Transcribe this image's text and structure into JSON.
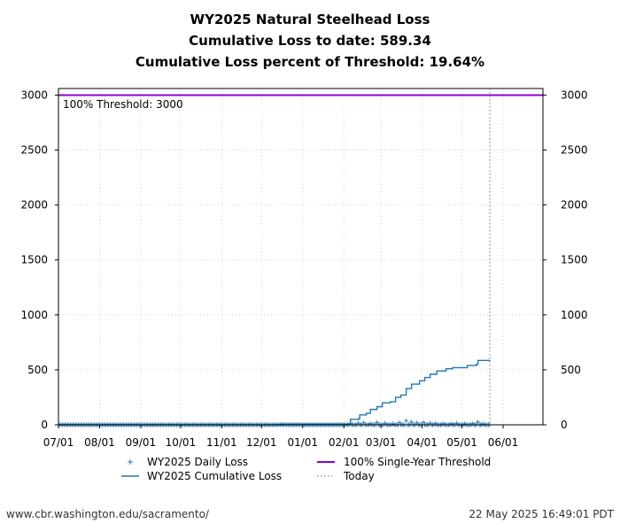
{
  "chart_data": {
    "type": "line",
    "title": "WY2025 Natural Steelhead Loss",
    "subtitle_1": "Cumulative Loss to date: 589.34",
    "subtitle_2": "Cumulative Loss percent of Threshold: 19.64%",
    "threshold_annotation": "100% Threshold: 3000",
    "xlim_days": [
      0,
      365
    ],
    "ylim": [
      0,
      3060
    ],
    "x_ticks": [
      {
        "label": "07/01",
        "day": 0
      },
      {
        "label": "08/01",
        "day": 31
      },
      {
        "label": "09/01",
        "day": 62
      },
      {
        "label": "10/01",
        "day": 92
      },
      {
        "label": "11/01",
        "day": 123
      },
      {
        "label": "12/01",
        "day": 153
      },
      {
        "label": "01/01",
        "day": 184
      },
      {
        "label": "02/01",
        "day": 215
      },
      {
        "label": "03/01",
        "day": 243
      },
      {
        "label": "04/01",
        "day": 274
      },
      {
        "label": "05/01",
        "day": 304
      },
      {
        "label": "06/01",
        "day": 335
      }
    ],
    "y_ticks": [
      {
        "label": "0",
        "value": 0
      },
      {
        "label": "500",
        "value": 500
      },
      {
        "label": "1000",
        "value": 1000
      },
      {
        "label": "1500",
        "value": 1500
      },
      {
        "label": "2000",
        "value": 2000
      },
      {
        "label": "2500",
        "value": 2500
      },
      {
        "label": "3000",
        "value": 3000
      }
    ],
    "threshold_value": 3000,
    "today_day": 325,
    "daily_loss_end_day": 325,
    "daily_loss_nonzero": [
      {
        "day": 168,
        "value": 5
      },
      {
        "day": 220,
        "value": 12
      },
      {
        "day": 226,
        "value": 15
      },
      {
        "day": 230,
        "value": 18
      },
      {
        "day": 235,
        "value": 10
      },
      {
        "day": 240,
        "value": 22
      },
      {
        "day": 246,
        "value": 14
      },
      {
        "day": 252,
        "value": 8
      },
      {
        "day": 257,
        "value": 20
      },
      {
        "day": 262,
        "value": 38
      },
      {
        "day": 266,
        "value": 25
      },
      {
        "day": 270,
        "value": 18
      },
      {
        "day": 275,
        "value": 22
      },
      {
        "day": 280,
        "value": 16
      },
      {
        "day": 284,
        "value": 12
      },
      {
        "day": 290,
        "value": 10
      },
      {
        "day": 296,
        "value": 9
      },
      {
        "day": 300,
        "value": 14
      },
      {
        "day": 306,
        "value": 8
      },
      {
        "day": 312,
        "value": 11
      },
      {
        "day": 316,
        "value": 25
      },
      {
        "day": 320,
        "value": 7
      }
    ],
    "cumulative_loss": [
      {
        "day": 0,
        "value": 0
      },
      {
        "day": 168,
        "value": 0
      },
      {
        "day": 169,
        "value": 5
      },
      {
        "day": 219,
        "value": 5
      },
      {
        "day": 220,
        "value": 50
      },
      {
        "day": 226,
        "value": 55
      },
      {
        "day": 227,
        "value": 90
      },
      {
        "day": 232,
        "value": 105
      },
      {
        "day": 235,
        "value": 140
      },
      {
        "day": 240,
        "value": 165
      },
      {
        "day": 244,
        "value": 200
      },
      {
        "day": 250,
        "value": 210
      },
      {
        "day": 254,
        "value": 250
      },
      {
        "day": 258,
        "value": 270
      },
      {
        "day": 262,
        "value": 330
      },
      {
        "day": 266,
        "value": 370
      },
      {
        "day": 272,
        "value": 400
      },
      {
        "day": 276,
        "value": 430
      },
      {
        "day": 280,
        "value": 460
      },
      {
        "day": 285,
        "value": 490
      },
      {
        "day": 292,
        "value": 510
      },
      {
        "day": 297,
        "value": 520
      },
      {
        "day": 305,
        "value": 520
      },
      {
        "day": 308,
        "value": 540
      },
      {
        "day": 315,
        "value": 550
      },
      {
        "day": 316,
        "value": 585
      },
      {
        "day": 325,
        "value": 589.34
      }
    ],
    "legend": [
      {
        "key": "daily",
        "label": "WY2025 Daily Loss",
        "marker": "+",
        "color": "#1f77b4"
      },
      {
        "key": "threshold",
        "label": "100% Single-Year Threshold",
        "marker": "line",
        "color": "#8a00d4"
      },
      {
        "key": "cumulative",
        "label": "WY2025 Cumulative Loss",
        "marker": "line",
        "color": "#1f77b4"
      },
      {
        "key": "today",
        "label": "Today",
        "marker": "dotted",
        "color": "#777777"
      }
    ],
    "legend_position": "bottom-center"
  },
  "footer": {
    "source_url": "www.cbr.washington.edu/sacramento/",
    "timestamp": "22 May 2025 16:49:01 PDT"
  }
}
